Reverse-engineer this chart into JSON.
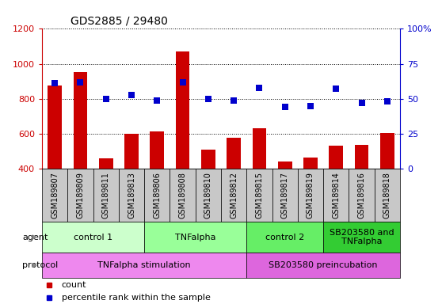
{
  "title": "GDS2885 / 29480",
  "samples": [
    "GSM189807",
    "GSM189809",
    "GSM189811",
    "GSM189813",
    "GSM189806",
    "GSM189808",
    "GSM189810",
    "GSM189812",
    "GSM189815",
    "GSM189817",
    "GSM189819",
    "GSM189814",
    "GSM189816",
    "GSM189818"
  ],
  "count_values": [
    875,
    955,
    460,
    600,
    615,
    1070,
    510,
    575,
    630,
    440,
    465,
    530,
    535,
    605
  ],
  "percentile_values": [
    61,
    62,
    50,
    53,
    49,
    62,
    50,
    49,
    58,
    44,
    45,
    57,
    47,
    48
  ],
  "ylim_left": [
    400,
    1200
  ],
  "ylim_right": [
    0,
    100
  ],
  "yticks_left": [
    400,
    600,
    800,
    1000,
    1200
  ],
  "yticks_right": [
    0,
    25,
    50,
    75,
    100
  ],
  "bar_color": "#cc0000",
  "dot_color": "#0000cc",
  "agent_groups": [
    {
      "label": "control 1",
      "start": 0,
      "end": 4,
      "color": "#ccffcc"
    },
    {
      "label": "TNFalpha",
      "start": 4,
      "end": 8,
      "color": "#99ff99"
    },
    {
      "label": "control 2",
      "start": 8,
      "end": 11,
      "color": "#66ee66"
    },
    {
      "label": "SB203580 and\nTNFalpha",
      "start": 11,
      "end": 14,
      "color": "#33cc33"
    }
  ],
  "protocol_groups": [
    {
      "label": "TNFalpha stimulation",
      "start": 0,
      "end": 8,
      "color": "#ee88ee"
    },
    {
      "label": "SB203580 preincubation",
      "start": 8,
      "end": 14,
      "color": "#dd66dd"
    }
  ],
  "bar_width": 0.55,
  "sample_box_color": "#c8c8c8",
  "background_color": "#ffffff",
  "tick_label_color_left": "#cc0000",
  "tick_label_color_right": "#0000cc",
  "label_fontsize": 8,
  "sample_fontsize": 7,
  "annotation_fontsize": 8
}
